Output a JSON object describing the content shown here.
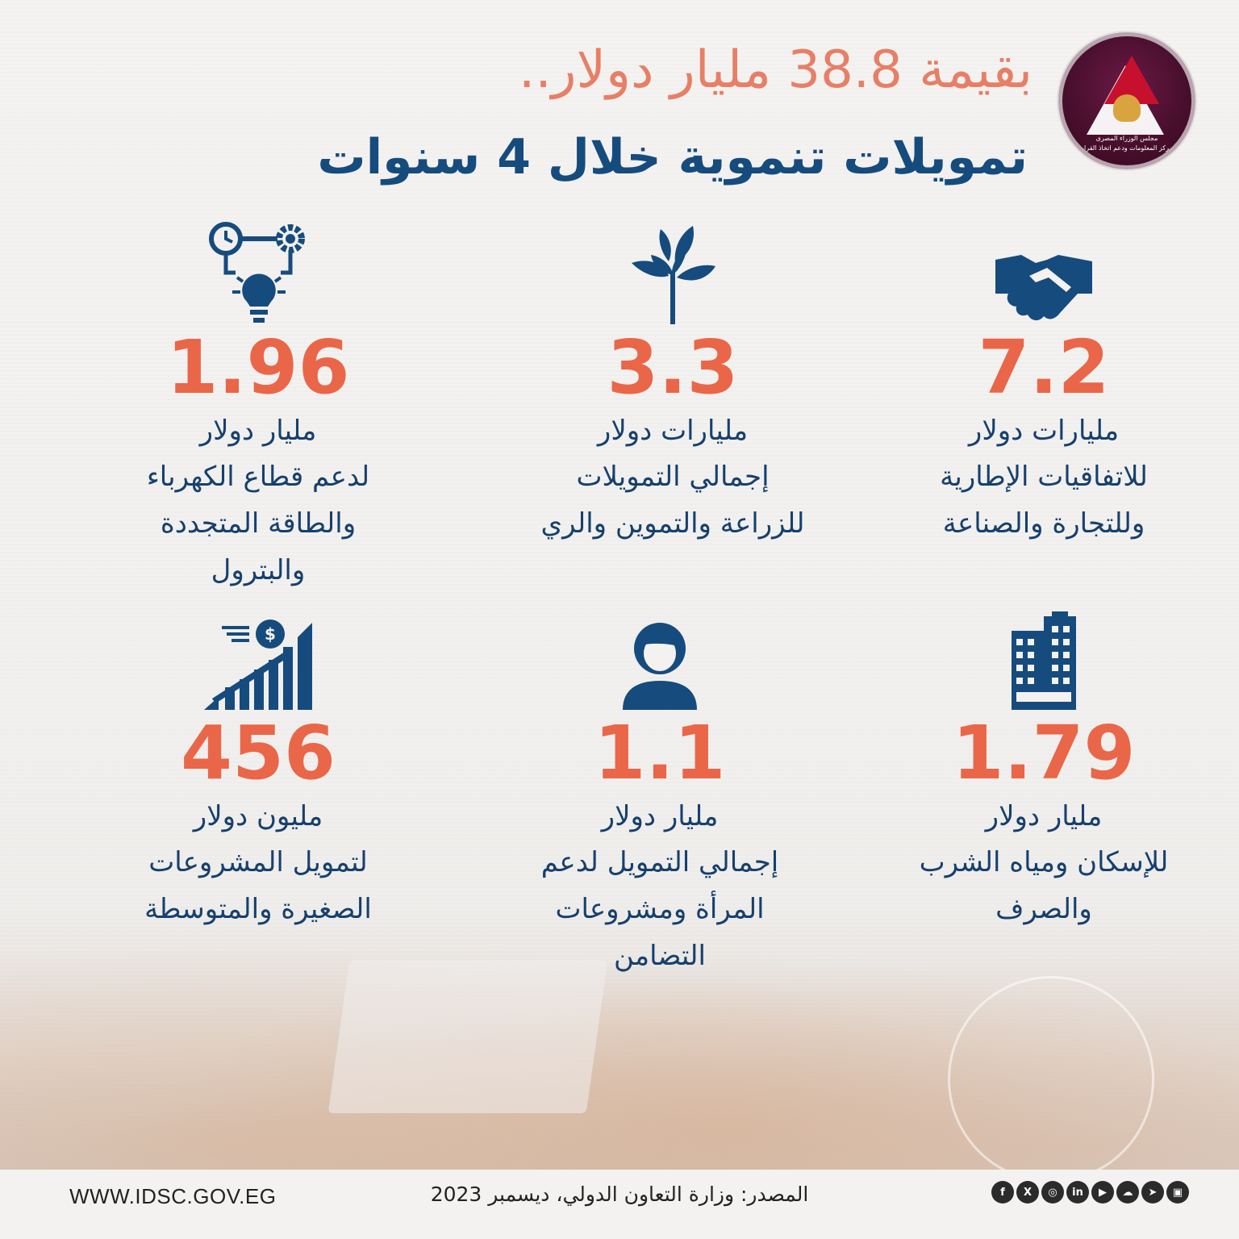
{
  "header": {
    "title_line1": "بقيمة 38.8 مليار دولار..",
    "title_line2": "تمويلات تنموية خلال 4 سنوات"
  },
  "logo": {
    "line1": "مجلس الوزراء المصرى",
    "line2": "مركز المعلومات ودعم اتخاذ القرار"
  },
  "stats": [
    {
      "icon": "handshake-icon",
      "value": "7.2",
      "unit": "مليارات دولار",
      "desc": [
        "للاتفاقيات الإطارية",
        "وللتجارة والصناعة"
      ]
    },
    {
      "icon": "plant-icon",
      "value": "3.3",
      "unit": "مليارات دولار",
      "desc": [
        "إجمالي التمويلات",
        "للزراعة والتموين والري"
      ]
    },
    {
      "icon": "energy-gears-bulb-icon",
      "value": "1.96",
      "unit": "مليار دولار",
      "desc": [
        "لدعم قطاع الكهرباء",
        "والطاقة المتجددة",
        "والبترول"
      ]
    },
    {
      "icon": "buildings-icon",
      "value": "1.79",
      "unit": "مليار دولار",
      "desc": [
        "للإسكان ومياه الشرب",
        "والصرف"
      ]
    },
    {
      "icon": "woman-icon",
      "value": "1.1",
      "unit": "مليار دولار",
      "desc": [
        "إجمالي التمويل لدعم",
        "المرأة ومشروعات",
        "التضامن"
      ]
    },
    {
      "icon": "growth-chart-dollar-icon",
      "value": "456",
      "unit": "مليون دولار",
      "desc": [
        "لتمويل المشروعات",
        "الصغيرة والمتوسطة"
      ]
    }
  ],
  "footer": {
    "website": "WWW.IDSC.GOV.EG",
    "source": "المصدر: وزارة التعاون الدولي، ديسمبر 2023",
    "social_icons": [
      "facebook-icon",
      "x-icon",
      "instagram-icon",
      "linkedin-icon",
      "youtube-icon",
      "soundcloud-icon",
      "telegram-icon",
      "app-icon"
    ]
  },
  "colors": {
    "accent": "#ea6648",
    "navy": "#16406e",
    "title_accent": "#e77f66"
  }
}
